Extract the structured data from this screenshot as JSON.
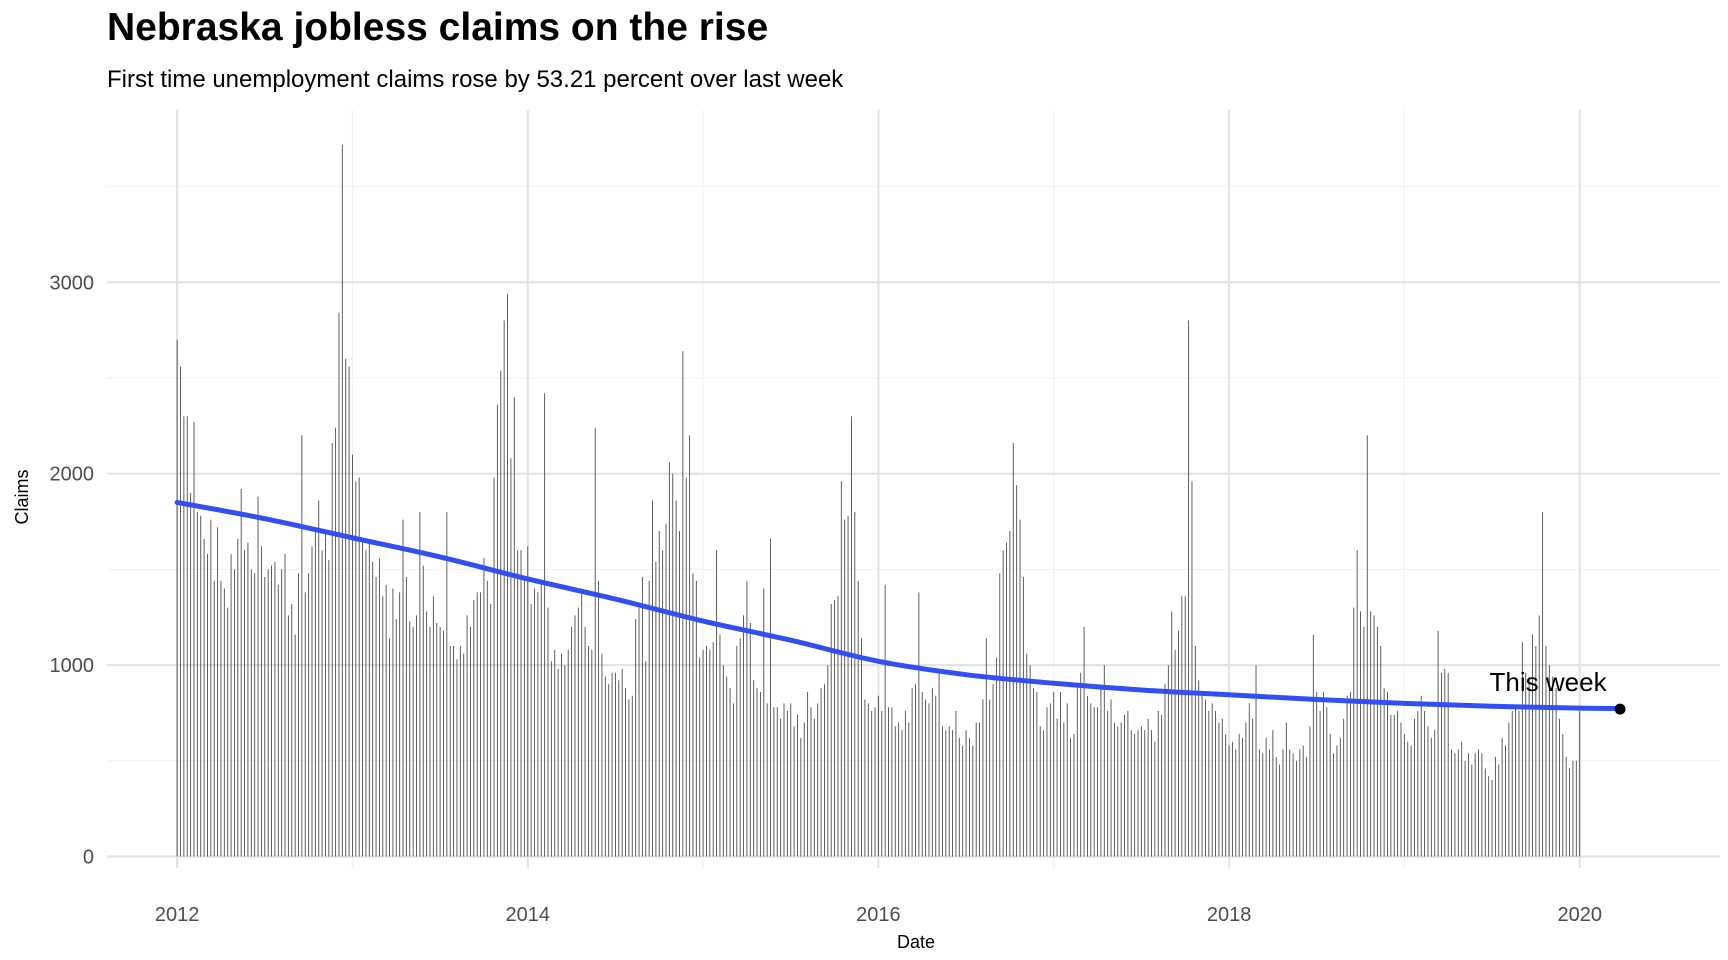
{
  "chart_data": {
    "type": "bar",
    "title": "Nebraska jobless claims on the rise",
    "subtitle": "First time unemployment claims rose by 53.21 percent over last week",
    "xlabel": "Date",
    "ylabel": "Claims",
    "x_range": [
      2011.6,
      2020.8
    ],
    "ylim": [
      -60,
      3900
    ],
    "x_ticks": [
      2012,
      2014,
      2016,
      2018,
      2020
    ],
    "x_tick_labels": [
      "2012",
      "2014",
      "2016",
      "2018",
      "2020"
    ],
    "y_ticks": [
      0,
      1000,
      2000,
      3000
    ],
    "y_tick_labels": [
      "0",
      "1000",
      "2000",
      "3000"
    ],
    "grid": true,
    "start_year": 2012.0,
    "week_step": 0.01923,
    "weekly_claims": [
      2700,
      2560,
      2300,
      2300,
      1900,
      2270,
      1800,
      1780,
      1660,
      1580,
      1760,
      1440,
      1720,
      1440,
      1400,
      1300,
      1580,
      1500,
      1660,
      1920,
      1600,
      1640,
      1500,
      1480,
      1880,
      1620,
      1460,
      1500,
      1520,
      1540,
      1420,
      1500,
      1580,
      1260,
      1320,
      1160,
      1480,
      2200,
      1380,
      1480,
      1620,
      1700,
      1860,
      1600,
      1700,
      1550,
      2160,
      2240,
      2840,
      3720,
      2600,
      2560,
      2100,
      1960,
      1980,
      1640,
      1600,
      1640,
      1540,
      1460,
      1560,
      1360,
      1420,
      1140,
      1400,
      1240,
      1380,
      1760,
      1460,
      1230,
      1200,
      1260,
      1800,
      1520,
      1280,
      1200,
      1360,
      1220,
      1200,
      1180,
      1800,
      1100,
      1100,
      1030,
      1100,
      1060,
      1260,
      1200,
      1340,
      1380,
      1380,
      1560,
      1440,
      1320,
      1980,
      2360,
      2540,
      2800,
      2940,
      2080,
      2400,
      1600,
      1600,
      1460,
      1620,
      1320,
      1400,
      1380,
      1440,
      2420,
      1300,
      1020,
      1080,
      980,
      1060,
      1000,
      1080,
      1200,
      1260,
      1300,
      1400,
      1200,
      1100,
      1080,
      2240,
      1440,
      1060,
      940,
      900,
      960,
      960,
      920,
      980,
      880,
      820,
      840,
      1240,
      1300,
      1460,
      1020,
      1440,
      1860,
      1540,
      1700,
      1600,
      1740,
      2060,
      2000,
      1860,
      1700,
      2640,
      1980,
      2200,
      1480,
      1440,
      1040,
      1080,
      1100,
      1080,
      1120,
      1600,
      1160,
      1000,
      940,
      880,
      800,
      1100,
      1140,
      1260,
      1440,
      1220,
      920,
      880,
      860,
      1400,
      800,
      1660,
      780,
      780,
      720,
      800,
      760,
      800,
      680,
      740,
      620,
      700,
      860,
      780,
      720,
      800,
      880,
      900,
      1000,
      1320,
      1340,
      1360,
      1960,
      1760,
      1780,
      2300,
      1800,
      1440,
      1140,
      820,
      800,
      760,
      780,
      840,
      760,
      1420,
      780,
      780,
      680,
      700,
      660,
      760,
      700,
      880,
      900,
      1380,
      860,
      820,
      800,
      880,
      840,
      960,
      680,
      660,
      680,
      660,
      760,
      620,
      580,
      660,
      620,
      580,
      700,
      700,
      820,
      1140,
      820,
      900,
      1040,
      1480,
      1600,
      1640,
      1700,
      2160,
      1940,
      1760,
      1460,
      1060,
      1000,
      880,
      860,
      680,
      660,
      780,
      800,
      860,
      720,
      860,
      700,
      800,
      620,
      640,
      900,
      960,
      1200,
      840,
      800,
      780,
      780,
      880,
      1000,
      760,
      820,
      700,
      680,
      700,
      740,
      760,
      660,
      640,
      660,
      680,
      660,
      720,
      660,
      600,
      760,
      740,
      900,
      1000,
      1280,
      1080,
      1180,
      1360,
      1360,
      2800,
      1960,
      1100,
      920,
      860,
      820,
      760,
      800,
      760,
      700,
      720,
      640,
      580,
      600,
      560,
      640,
      620,
      700,
      800,
      720,
      1000,
      560,
      540,
      620,
      560,
      660,
      520,
      480,
      560,
      700,
      560,
      540,
      500,
      560,
      580,
      520,
      680,
      1160,
      860,
      760,
      860,
      780,
      640,
      540,
      580,
      620,
      720,
      840,
      860,
      1300,
      1600,
      1280,
      1200,
      2200,
      1280,
      1260,
      1200,
      1100,
      880,
      860,
      740,
      740,
      760,
      700,
      640,
      600,
      580,
      720,
      760,
      840,
      760,
      680,
      620,
      660,
      1180,
      960,
      980,
      960,
      560,
      540,
      560,
      600,
      500,
      540,
      480,
      540,
      560,
      540,
      460,
      420,
      400,
      520,
      480,
      620,
      580,
      700,
      760,
      780,
      760,
      1120,
      960,
      940,
      1160,
      1100,
      1260,
      1800,
      1100,
      1000,
      940,
      880,
      720,
      640,
      520,
      460,
      500,
      500,
      760
    ],
    "trend_line": {
      "name": "",
      "points": [
        [
          2012.0,
          1850
        ],
        [
          2012.5,
          1765
        ],
        [
          2013.0,
          1665
        ],
        [
          2013.5,
          1565
        ],
        [
          2014.0,
          1450
        ],
        [
          2014.5,
          1345
        ],
        [
          2015.0,
          1230
        ],
        [
          2015.5,
          1130
        ],
        [
          2016.0,
          1020
        ],
        [
          2016.5,
          950
        ],
        [
          2017.0,
          905
        ],
        [
          2017.5,
          870
        ],
        [
          2018.0,
          845
        ],
        [
          2018.5,
          820
        ],
        [
          2019.0,
          800
        ],
        [
          2019.5,
          785
        ],
        [
          2020.0,
          775
        ],
        [
          2020.23,
          773
        ]
      ]
    },
    "highlight_point": {
      "x": 2020.23,
      "y": 770,
      "label": "This week"
    },
    "colors": {
      "bars": "#4d4d4d",
      "trend": "#3050f5",
      "point": "#000000",
      "grid": "#e4e4e4",
      "background": "#ffffff"
    }
  }
}
